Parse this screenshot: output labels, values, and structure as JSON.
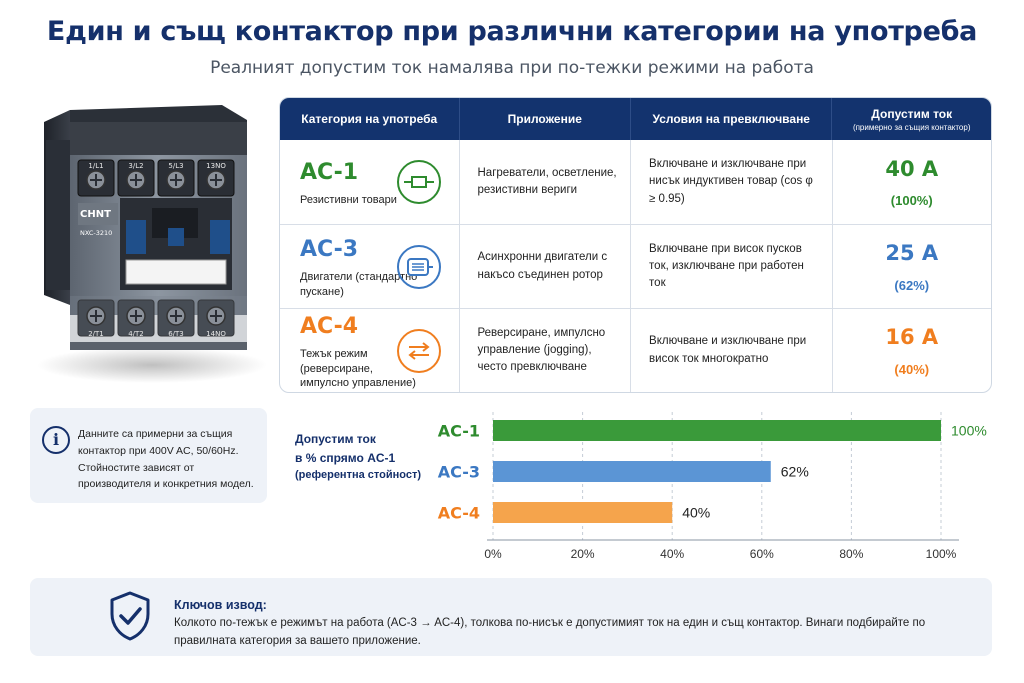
{
  "header": {
    "title": "Един и същ контактор при различни категории на употреба",
    "subtitle": "Реалният допустим ток намалява при по-тежки режими на работа"
  },
  "device": {
    "brand": "CHNT",
    "model": "NXC-3210",
    "top_terminals": [
      "1/L1",
      "3/L2",
      "5/L3",
      "13NO"
    ],
    "bottom_terminals": [
      "2/T1",
      "4/T2",
      "6/T3",
      "14NO"
    ]
  },
  "table": {
    "headers": {
      "category": "Категория на употреба",
      "application": "Приложение",
      "conditions": "Условия на превключване",
      "current": "Допустим ток",
      "current_note": "(примерно за същия контактор)"
    },
    "rows": [
      {
        "code": "AC-1",
        "desc": "Резистивни товари",
        "icon": "resistor-icon",
        "color": "#2e8b2e",
        "application": "Нагреватели, осветление, резистивни вериги",
        "conditions": "Включване и изключване при нисък индуктивен товар (cos φ ≥ 0.95)",
        "current": "40 A",
        "percent": "(100%)"
      },
      {
        "code": "AC-3",
        "desc": "Двигатели (стандартно пускане)",
        "icon": "motor-icon",
        "color": "#3b78c2",
        "application": "Асинхронни двигатели с накъсо съединен ротор",
        "conditions": "Включване при висок пусков ток, изключване при работен ток",
        "current": "25 A",
        "percent": "(62%)"
      },
      {
        "code": "AC-4",
        "desc": "Тежък режим (реверсиране, импулсно управление)",
        "icon": "reverse-arrows-icon",
        "color": "#f07e1f",
        "application": "Реверсиране, импулсно управление (jogging), често превключване",
        "conditions": "Включване и изключване при висок ток многократно",
        "current": "16 A",
        "percent": "(40%)"
      }
    ]
  },
  "note": {
    "icon": "info-icon",
    "text": "Данните са примерни за същия контактор при 400V AC, 50/60Hz. Стойностите зависят от производителя и конкретния модел."
  },
  "chart_label": {
    "line1": "Допустим ток",
    "line2": "в % спрямо AC-1",
    "line3": "(референтна стойност)"
  },
  "chart_data": {
    "type": "bar",
    "orientation": "horizontal",
    "categories": [
      "AC-1",
      "AC-3",
      "AC-4"
    ],
    "values": [
      100,
      62,
      40
    ],
    "value_labels": [
      "100%",
      "62%",
      "40%"
    ],
    "colors": [
      "#3a9a3a",
      "#5b95d5",
      "#f5a44c"
    ],
    "label_colors": [
      "#2e8b2e",
      "#3b78c2",
      "#f07e1f"
    ],
    "xlim": [
      0,
      100
    ],
    "x_ticks": [
      "0%",
      "20%",
      "40%",
      "60%",
      "80%",
      "100%"
    ],
    "grid": true
  },
  "key": {
    "icon": "shield-check-icon",
    "title": "Ключов извод:",
    "text": "Колкото по-тежък е режимът на работа (AC-3 → AC-4), толкова по-нисък е допустимият ток на един и същ контактор. Винаги подбирайте по правилната категория за вашето приложение."
  }
}
